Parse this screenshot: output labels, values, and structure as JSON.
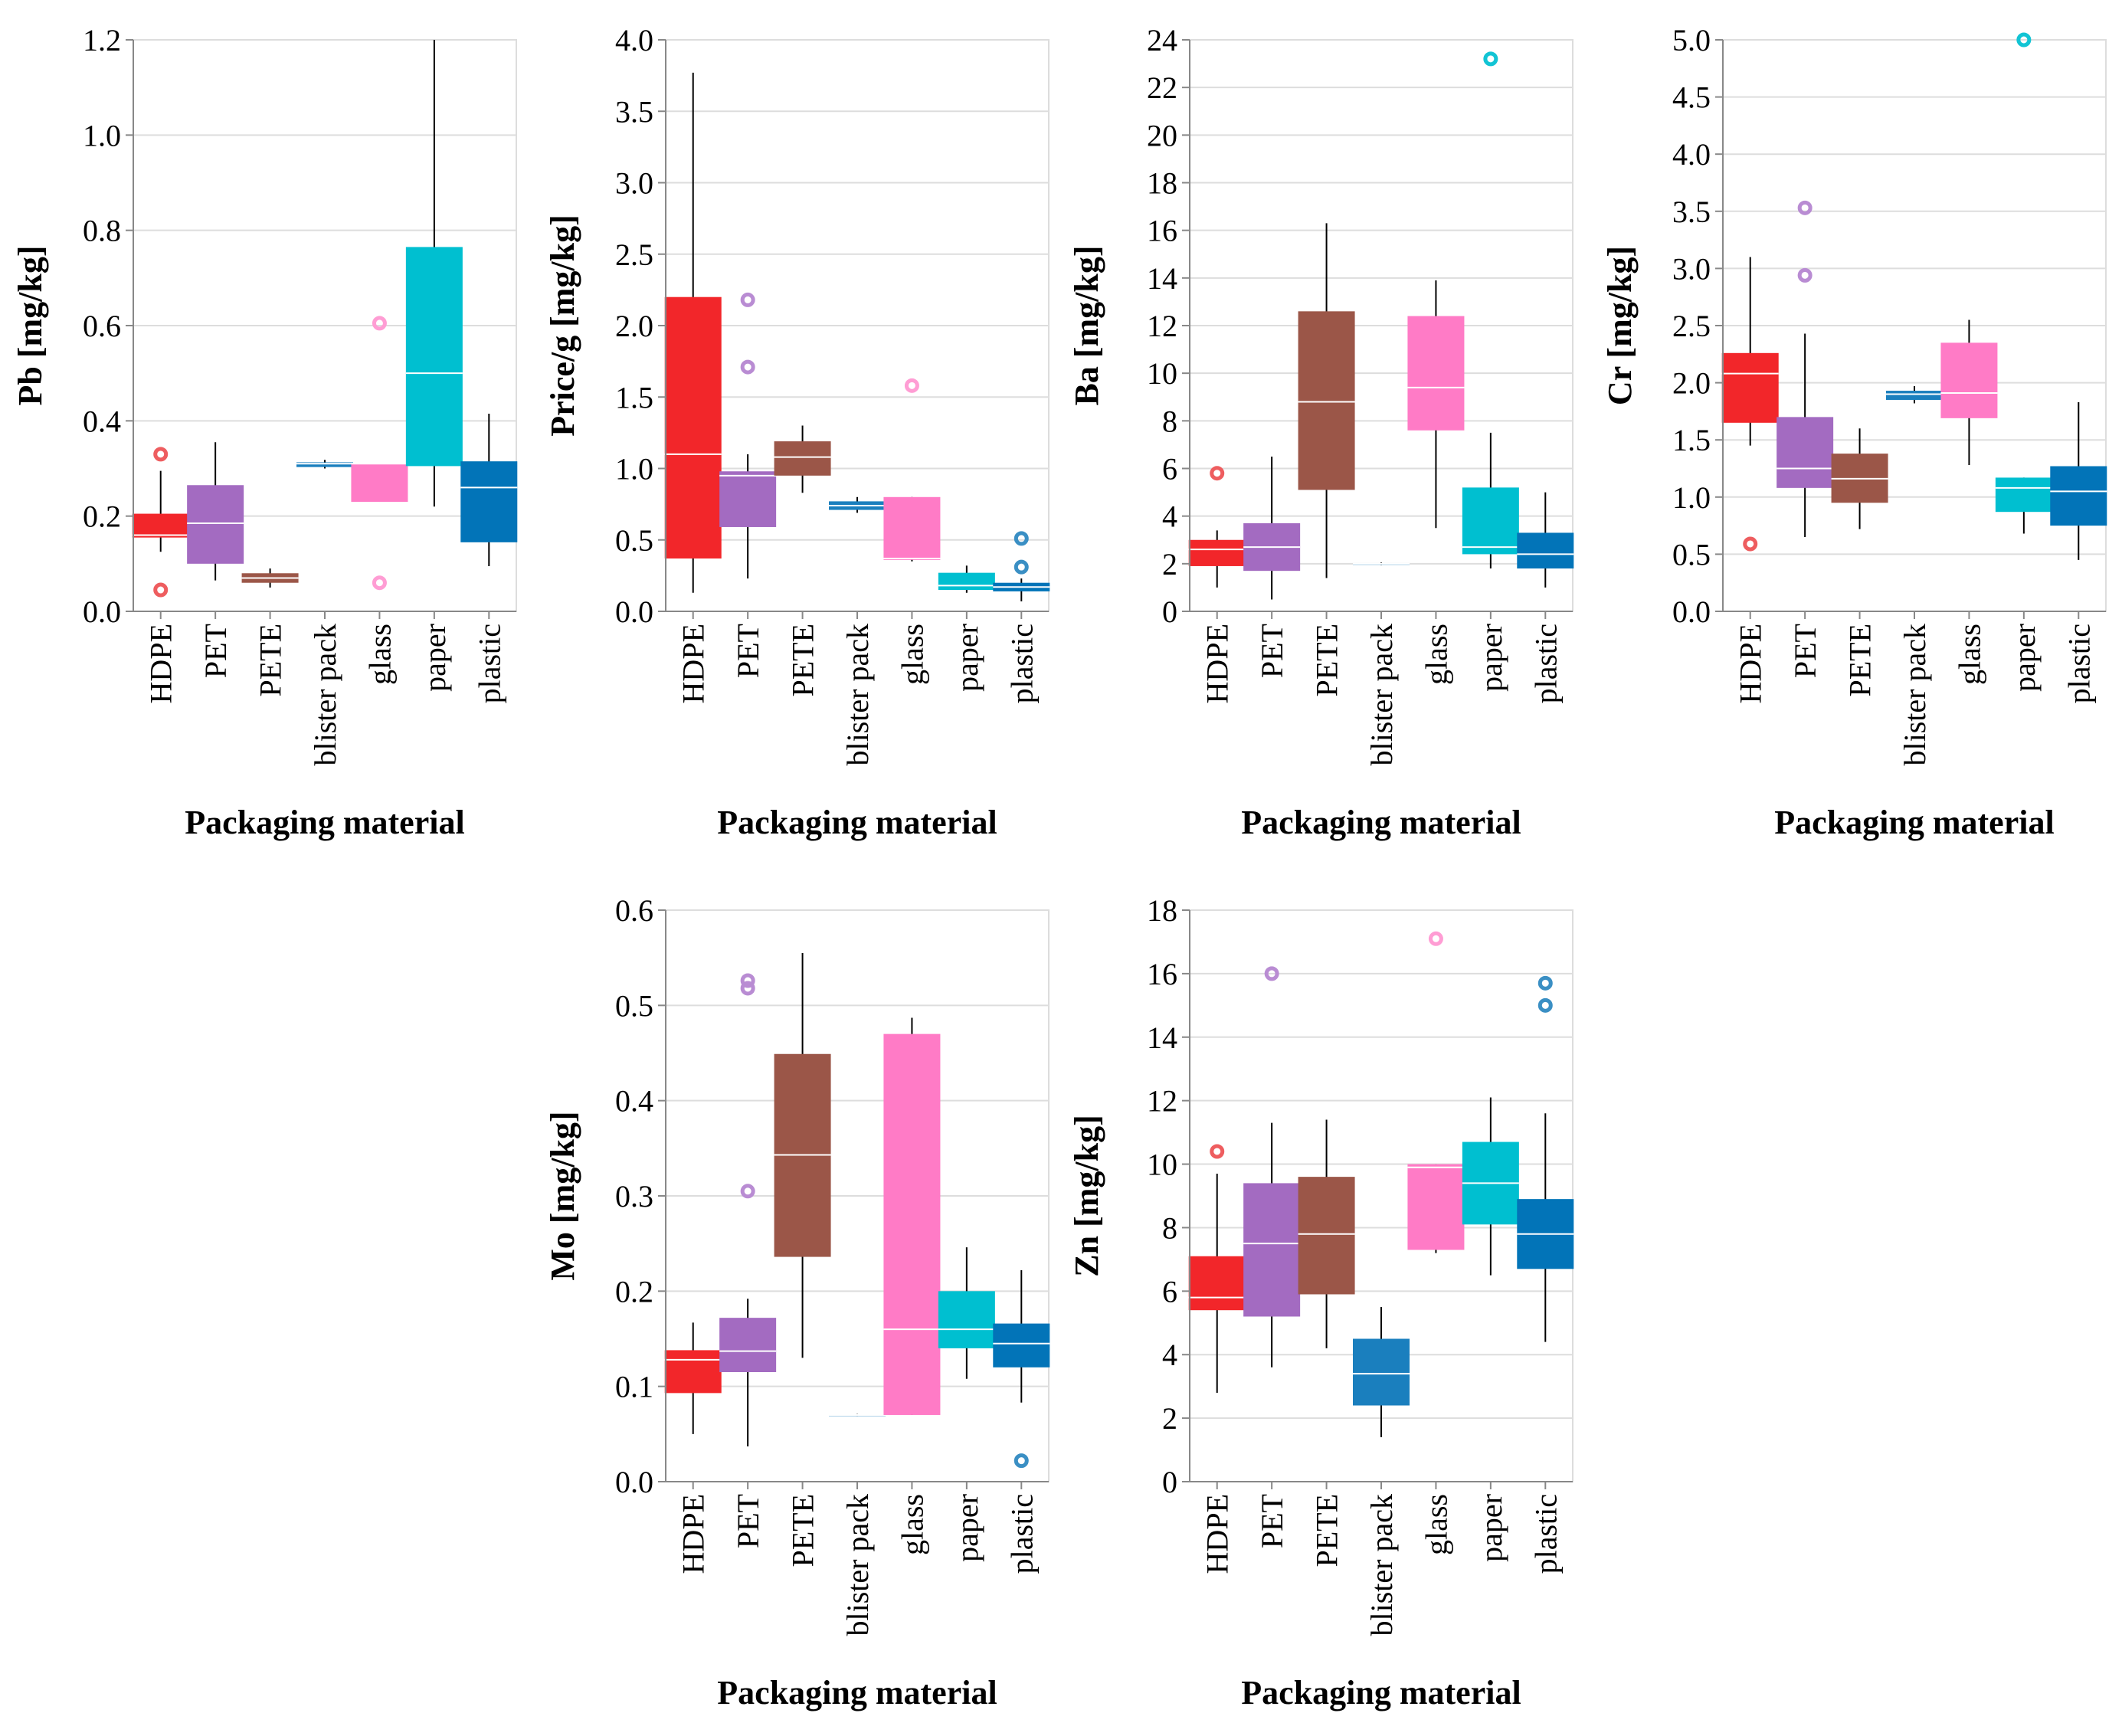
{
  "chart_data": [
    {
      "type": "boxplot",
      "title": "",
      "xlabel": "Packaging material",
      "ylabel": "Pb [mg/kg]",
      "ylim": [
        0,
        1.2
      ],
      "yticks": [
        0.0,
        0.2,
        0.4,
        0.6,
        0.8,
        1.0,
        1.2
      ],
      "ytick_labels": [
        "0.0",
        "0.2",
        "0.4",
        "0.6",
        "0.8",
        "1.0",
        "1.2"
      ],
      "categories": [
        "HDPE",
        "PET",
        "PETE",
        "blister pack",
        "glass",
        "paper",
        "plastic"
      ],
      "boxes": [
        {
          "category": "HDPE",
          "min": 0.125,
          "q1": 0.155,
          "median": 0.16,
          "q3": 0.205,
          "max": 0.295,
          "outliers": [
            0.045,
            0.33
          ]
        },
        {
          "category": "PET",
          "min": 0.065,
          "q1": 0.1,
          "median": 0.185,
          "q3": 0.265,
          "max": 0.355,
          "outliers": []
        },
        {
          "category": "PETE",
          "min": 0.05,
          "q1": 0.06,
          "median": 0.07,
          "q3": 0.08,
          "max": 0.09,
          "outliers": []
        },
        {
          "category": "blister pack",
          "min": 0.3,
          "q1": 0.303,
          "median": 0.31,
          "q3": 0.313,
          "max": 0.318,
          "outliers": []
        },
        {
          "category": "glass",
          "min": 0.23,
          "q1": 0.23,
          "median": 0.31,
          "q3": 0.31,
          "max": 0.31,
          "outliers": [
            0.06,
            0.605
          ]
        },
        {
          "category": "paper",
          "min": 0.22,
          "q1": 0.305,
          "median": 0.5,
          "q3": 0.765,
          "max": 1.2,
          "outliers": []
        },
        {
          "category": "plastic",
          "min": 0.095,
          "q1": 0.145,
          "median": 0.26,
          "q3": 0.315,
          "max": 0.415,
          "outliers": []
        }
      ]
    },
    {
      "type": "boxplot",
      "title": "",
      "xlabel": "Packaging material",
      "ylabel": "Price/g [mg/kg]",
      "ylim": [
        0,
        4.0
      ],
      "yticks": [
        0.0,
        0.5,
        1.0,
        1.5,
        2.0,
        2.5,
        3.0,
        3.5,
        4.0
      ],
      "ytick_labels": [
        "0.0",
        "0.5",
        "1.0",
        "1.5",
        "2.0",
        "2.5",
        "3.0",
        "3.5",
        "4.0"
      ],
      "categories": [
        "HDPE",
        "PET",
        "PETE",
        "blister pack",
        "glass",
        "paper",
        "plastic"
      ],
      "boxes": [
        {
          "category": "HDPE",
          "min": 0.13,
          "q1": 0.37,
          "median": 1.1,
          "q3": 2.2,
          "max": 3.77,
          "outliers": []
        },
        {
          "category": "PET",
          "min": 0.23,
          "q1": 0.59,
          "median": 0.95,
          "q3": 0.98,
          "max": 1.1,
          "outliers": [
            1.71,
            2.18
          ]
        },
        {
          "category": "PETE",
          "min": 0.83,
          "q1": 0.95,
          "median": 1.08,
          "q3": 1.19,
          "max": 1.3,
          "outliers": []
        },
        {
          "category": "blister pack",
          "min": 0.69,
          "q1": 0.71,
          "median": 0.74,
          "q3": 0.77,
          "max": 0.8,
          "outliers": []
        },
        {
          "category": "glass",
          "min": 0.35,
          "q1": 0.36,
          "median": 0.37,
          "q3": 0.8,
          "max": 0.8,
          "outliers": [
            1.58
          ]
        },
        {
          "category": "paper",
          "min": 0.13,
          "q1": 0.15,
          "median": 0.18,
          "q3": 0.27,
          "max": 0.32,
          "outliers": []
        },
        {
          "category": "plastic",
          "min": 0.07,
          "q1": 0.14,
          "median": 0.17,
          "q3": 0.2,
          "max": 0.23,
          "outliers": [
            0.31,
            0.51
          ]
        }
      ]
    },
    {
      "type": "boxplot",
      "title": "",
      "xlabel": "Packaging material",
      "ylabel": "Ba [mg/kg]",
      "ylim": [
        0,
        24
      ],
      "yticks": [
        0,
        2,
        4,
        6,
        8,
        10,
        12,
        14,
        16,
        18,
        20,
        22,
        24
      ],
      "ytick_labels": [
        "0",
        "2",
        "4",
        "6",
        "8",
        "10",
        "12",
        "14",
        "16",
        "18",
        "20",
        "22",
        "24"
      ],
      "categories": [
        "HDPE",
        "PET",
        "PETE",
        "blister pack",
        "glass",
        "paper",
        "plastic"
      ],
      "boxes": [
        {
          "category": "HDPE",
          "min": 1.0,
          "q1": 1.9,
          "median": 2.6,
          "q3": 3.0,
          "max": 3.4,
          "outliers": [
            5.8
          ]
        },
        {
          "category": "PET",
          "min": 0.5,
          "q1": 1.7,
          "median": 2.7,
          "q3": 3.7,
          "max": 6.5,
          "outliers": []
        },
        {
          "category": "PETE",
          "min": 1.4,
          "q1": 5.1,
          "median": 8.8,
          "q3": 12.6,
          "max": 16.3,
          "outliers": []
        },
        {
          "category": "blister pack",
          "min": 1.95,
          "q1": 1.97,
          "median": 2.0,
          "q3": 2.02,
          "max": 2.05,
          "outliers": []
        },
        {
          "category": "glass",
          "min": 3.5,
          "q1": 7.6,
          "median": 9.4,
          "q3": 12.4,
          "max": 13.9,
          "outliers": []
        },
        {
          "category": "paper",
          "min": 1.8,
          "q1": 2.4,
          "median": 2.7,
          "q3": 5.2,
          "max": 7.5,
          "outliers": [
            23.2
          ]
        },
        {
          "category": "plastic",
          "min": 1.0,
          "q1": 1.8,
          "median": 2.4,
          "q3": 3.3,
          "max": 5.0,
          "outliers": []
        }
      ]
    },
    {
      "type": "boxplot",
      "title": "",
      "xlabel": "Packaging material",
      "ylabel": "Cr [mg/kg]",
      "ylim": [
        0,
        5.0
      ],
      "yticks": [
        0.0,
        0.5,
        1.0,
        1.5,
        2.0,
        2.5,
        3.0,
        3.5,
        4.0,
        4.5,
        5.0
      ],
      "ytick_labels": [
        "0.0",
        "0.5",
        "1.0",
        "1.5",
        "2.0",
        "2.5",
        "3.0",
        "3.5",
        "4.0",
        "4.5",
        "5.0"
      ],
      "categories": [
        "HDPE",
        "PET",
        "PETE",
        "blister pack",
        "glass",
        "paper",
        "plastic"
      ],
      "boxes": [
        {
          "category": "HDPE",
          "min": 1.45,
          "q1": 1.65,
          "median": 2.08,
          "q3": 2.26,
          "max": 3.1,
          "outliers": [
            0.59
          ]
        },
        {
          "category": "PET",
          "min": 0.65,
          "q1": 1.08,
          "median": 1.25,
          "q3": 1.7,
          "max": 2.43,
          "outliers": [
            2.94,
            3.53
          ]
        },
        {
          "category": "PETE",
          "min": 0.72,
          "q1": 0.95,
          "median": 1.16,
          "q3": 1.38,
          "max": 1.6,
          "outliers": []
        },
        {
          "category": "blister pack",
          "min": 1.82,
          "q1": 1.85,
          "median": 1.9,
          "q3": 1.93,
          "max": 1.97,
          "outliers": []
        },
        {
          "category": "glass",
          "min": 1.28,
          "q1": 1.69,
          "median": 1.91,
          "q3": 2.35,
          "max": 2.55,
          "outliers": []
        },
        {
          "category": "paper",
          "min": 0.68,
          "q1": 0.87,
          "median": 1.08,
          "q3": 1.17,
          "max": 1.17,
          "outliers": [
            5.0
          ]
        },
        {
          "category": "plastic",
          "min": 0.45,
          "q1": 0.75,
          "median": 1.05,
          "q3": 1.27,
          "max": 1.83,
          "outliers": []
        }
      ]
    },
    {
      "type": "boxplot",
      "title": "",
      "xlabel": "Packaging material",
      "ylabel": "Mo [mg/kg]",
      "ylim": [
        0,
        0.6
      ],
      "yticks": [
        0.0,
        0.1,
        0.2,
        0.3,
        0.4,
        0.5,
        0.6
      ],
      "ytick_labels": [
        "0.0",
        "0.1",
        "0.2",
        "0.3",
        "0.4",
        "0.5",
        "0.6"
      ],
      "categories": [
        "HDPE",
        "PET",
        "PETE",
        "blister pack",
        "glass",
        "paper",
        "plastic"
      ],
      "boxes": [
        {
          "category": "HDPE",
          "min": 0.05,
          "q1": 0.093,
          "median": 0.128,
          "q3": 0.138,
          "max": 0.167,
          "outliers": []
        },
        {
          "category": "PET",
          "min": 0.037,
          "q1": 0.115,
          "median": 0.137,
          "q3": 0.172,
          "max": 0.192,
          "outliers": [
            0.305,
            0.518,
            0.526
          ]
        },
        {
          "category": "PETE",
          "min": 0.13,
          "q1": 0.236,
          "median": 0.343,
          "q3": 0.449,
          "max": 0.555,
          "outliers": []
        },
        {
          "category": "blister pack",
          "min": 0.069,
          "q1": 0.0695,
          "median": 0.07,
          "q3": 0.0705,
          "max": 0.071,
          "outliers": []
        },
        {
          "category": "glass",
          "min": 0.07,
          "q1": 0.07,
          "median": 0.16,
          "q3": 0.47,
          "max": 0.487,
          "outliers": []
        },
        {
          "category": "paper",
          "min": 0.108,
          "q1": 0.14,
          "median": 0.16,
          "q3": 0.2,
          "max": 0.246,
          "outliers": []
        },
        {
          "category": "plastic",
          "min": 0.083,
          "q1": 0.12,
          "median": 0.145,
          "q3": 0.166,
          "max": 0.222,
          "outliers": [
            0.022
          ]
        }
      ]
    },
    {
      "type": "boxplot",
      "title": "",
      "xlabel": "Packaging material",
      "ylabel": "Zn [mg/kg]",
      "ylim": [
        0,
        18
      ],
      "yticks": [
        0,
        2,
        4,
        6,
        8,
        10,
        12,
        14,
        16,
        18
      ],
      "ytick_labels": [
        "0",
        "2",
        "4",
        "6",
        "8",
        "10",
        "12",
        "14",
        "16",
        "18"
      ],
      "categories": [
        "HDPE",
        "PET",
        "PETE",
        "blister pack",
        "glass",
        "paper",
        "plastic"
      ],
      "boxes": [
        {
          "category": "HDPE",
          "min": 2.8,
          "q1": 5.4,
          "median": 5.8,
          "q3": 7.1,
          "max": 9.7,
          "outliers": [
            10.4
          ]
        },
        {
          "category": "PET",
          "min": 3.6,
          "q1": 5.2,
          "median": 7.5,
          "q3": 9.4,
          "max": 11.3,
          "outliers": [
            16.0
          ]
        },
        {
          "category": "PETE",
          "min": 4.2,
          "q1": 5.9,
          "median": 7.8,
          "q3": 9.6,
          "max": 11.4,
          "outliers": []
        },
        {
          "category": "blister pack",
          "min": 1.4,
          "q1": 2.4,
          "median": 3.4,
          "q3": 4.5,
          "max": 5.5,
          "outliers": []
        },
        {
          "category": "glass",
          "min": 7.2,
          "q1": 7.3,
          "median": 9.9,
          "q3": 10.0,
          "max": 10.0,
          "outliers": [
            17.1
          ]
        },
        {
          "category": "paper",
          "min": 6.5,
          "q1": 8.1,
          "median": 9.4,
          "q3": 10.7,
          "max": 12.1,
          "outliers": []
        },
        {
          "category": "plastic",
          "min": 4.4,
          "q1": 6.7,
          "median": 7.8,
          "q3": 8.9,
          "max": 11.6,
          "outliers": [
            15.0,
            15.7
          ]
        }
      ]
    }
  ],
  "colors": {
    "HDPE": "#f2262a",
    "PET": "#a36bc1",
    "PETE": "#9b5648",
    "blister pack": "#1a7fbe",
    "glass": "#ff7bc6",
    "paper": "#00bfd0",
    "plastic": "#0274b8"
  },
  "outlier_colors": {
    "HDPE": "#ee5d5f",
    "PET": "#b98cd3",
    "PETE": "#b07a6e",
    "blister pack": "#4a9ccc",
    "glass": "#ff9dd4",
    "paper": "#12c4d4",
    "plastic": "#3a8fc4"
  }
}
